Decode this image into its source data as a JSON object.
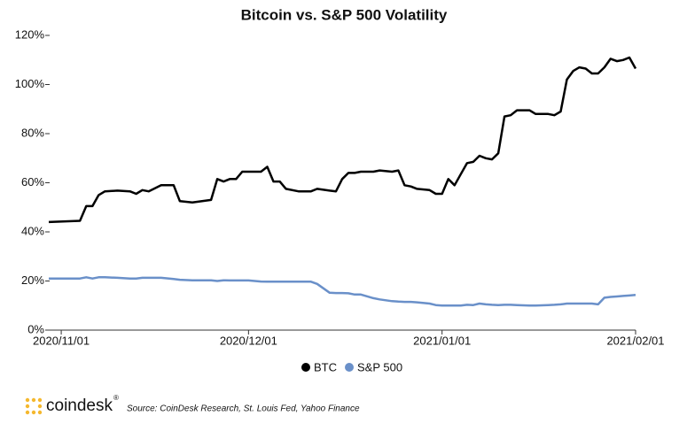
{
  "chart_data": {
    "type": "line",
    "title": "Bitcoin vs. S&P 500 Volatility",
    "x": [
      "2020/10/30",
      "2020/11/04",
      "2020/11/05",
      "2020/11/06",
      "2020/11/07",
      "2020/11/08",
      "2020/11/10",
      "2020/11/12",
      "2020/11/13",
      "2020/11/14",
      "2020/11/15",
      "2020/11/17",
      "2020/11/19",
      "2020/11/20",
      "2020/11/22",
      "2020/11/25",
      "2020/11/26",
      "2020/11/27",
      "2020/11/28",
      "2020/11/29",
      "2020/11/30",
      "2020/12/01",
      "2020/12/03",
      "2020/12/04",
      "2020/12/05",
      "2020/12/06",
      "2020/12/07",
      "2020/12/09",
      "2020/12/11",
      "2020/12/12",
      "2020/12/14",
      "2020/12/15",
      "2020/12/16",
      "2020/12/17",
      "2020/12/18",
      "2020/12/19",
      "2020/12/21",
      "2020/12/22",
      "2020/12/24",
      "2020/12/25",
      "2020/12/26",
      "2020/12/27",
      "2020/12/28",
      "2020/12/30",
      "2020/12/31",
      "2021/01/01",
      "2021/01/02",
      "2021/01/03",
      "2021/01/04",
      "2021/01/05",
      "2021/01/06",
      "2021/01/07",
      "2021/01/08",
      "2021/01/09",
      "2021/01/10",
      "2021/01/11",
      "2021/01/12",
      "2021/01/13",
      "2021/01/15",
      "2021/01/16",
      "2021/01/18",
      "2021/01/19",
      "2021/01/20",
      "2021/01/21",
      "2021/01/22",
      "2021/01/23",
      "2021/01/24",
      "2021/01/25",
      "2021/01/26",
      "2021/01/27",
      "2021/01/28",
      "2021/01/29",
      "2021/01/30",
      "2021/01/31",
      "2021/02/01"
    ],
    "series": [
      {
        "name": "BTC",
        "color": "#000000",
        "values": [
          44,
          44.5,
          50.5,
          50.5,
          55,
          56.5,
          56.8,
          56.5,
          55.5,
          57,
          56.5,
          59,
          59,
          52.5,
          52,
          53,
          61.5,
          60.5,
          61.5,
          61.5,
          64.5,
          64.5,
          64.5,
          66.5,
          60.5,
          60.5,
          57.5,
          56.5,
          56.5,
          57.5,
          56.8,
          56.5,
          61.5,
          64,
          64,
          64.5,
          64.5,
          65,
          64.5,
          65,
          59,
          58.5,
          57.5,
          57,
          55.5,
          55.5,
          61.5,
          59,
          63.5,
          68,
          68.5,
          71,
          70,
          69.5,
          72,
          87,
          87.5,
          89.5,
          89.5,
          88,
          88,
          87.5,
          89,
          102,
          105.5,
          107,
          106.5,
          104.5,
          104.5,
          107,
          110.5,
          109.5,
          110,
          111,
          106.5
        ]
      },
      {
        "name": "S&P 500",
        "color": "#6a90c9",
        "values": [
          21,
          21,
          21.5,
          21,
          21.5,
          21.5,
          21.3,
          21,
          21,
          21.3,
          21.3,
          21.3,
          20.8,
          20.5,
          20.3,
          20.3,
          20,
          20.3,
          20.2,
          20.2,
          20.2,
          20.2,
          19.8,
          19.7,
          19.7,
          19.7,
          19.7,
          19.7,
          19.7,
          18.8,
          15.2,
          15.1,
          15.1,
          15,
          14.5,
          14.5,
          13,
          12.5,
          11.8,
          11.6,
          11.5,
          11.5,
          11.3,
          10.8,
          10.2,
          10,
          10,
          10,
          10,
          10.3,
          10.2,
          10.8,
          10.5,
          10.3,
          10.2,
          10.3,
          10.3,
          10.2,
          10,
          10,
          10.2,
          10.3,
          10.5,
          10.8,
          10.8,
          10.8,
          10.8,
          10.8,
          10.5,
          13.2,
          13.5,
          13.7,
          13.9,
          14.1,
          14.3
        ]
      }
    ],
    "xlim": [
      "2020/10/30",
      "2021/02/01"
    ],
    "xticks": [
      "2020/11/01",
      "2020/12/01",
      "2021/01/01",
      "2021/02/01"
    ],
    "ylim": [
      0,
      120
    ],
    "yticks": [
      {
        "value": 0,
        "label": "0%"
      },
      {
        "value": 20,
        "label": "20%"
      },
      {
        "value": 40,
        "label": "40%"
      },
      {
        "value": 60,
        "label": "60%"
      },
      {
        "value": 80,
        "label": "80%"
      },
      {
        "value": 100,
        "label": "100%"
      },
      {
        "value": 120,
        "label": "120%"
      }
    ],
    "grid": false,
    "legend": "bottom"
  },
  "footer": {
    "brand": "coindesk",
    "brand_mark": "®",
    "source": "Source: CoinDesk Research, St. Louis Fed, Yahoo Finance"
  }
}
